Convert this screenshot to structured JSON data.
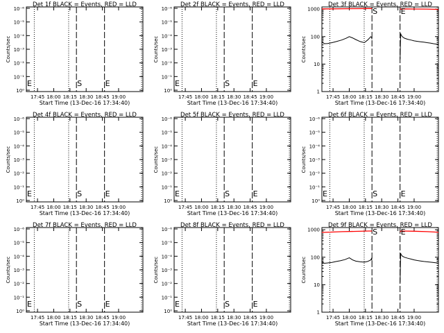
{
  "figure": {
    "panels": [
      {
        "title": "Det 1f BLACK = Events, RED = LLD",
        "variant": "empty",
        "yticks": [
          "10⁻⁶",
          "10⁻⁵",
          "10⁻⁴",
          "10⁻³",
          "10⁻²",
          "10⁻¹",
          "10⁰"
        ],
        "marker_s_show": true,
        "marker_e_show": true,
        "marker_e_left_show": true
      },
      {
        "title": "Det 2f BLACK = Events, RED = LLD",
        "variant": "empty",
        "yticks": [
          "10⁻⁶",
          "10⁻⁵",
          "10⁻⁴",
          "10⁻³",
          "10⁻²",
          "10⁻¹",
          "10⁰"
        ],
        "marker_s_show": true,
        "marker_e_show": true,
        "marker_e_left_show": true
      },
      {
        "title": "Det 3f BLACK = Events, RED = LLD",
        "variant": "data",
        "yticks": [
          "1000",
          "100",
          "10",
          "1"
        ],
        "marker_s_show": true,
        "marker_e_show": true,
        "marker_e_left_show": false
      },
      {
        "title": "Det 4f BLACK = Events, RED = LLD",
        "variant": "empty",
        "yticks": [
          "10⁻⁶",
          "10⁻⁵",
          "10⁻⁴",
          "10⁻³",
          "10⁻²",
          "10⁻¹",
          "10⁰"
        ],
        "marker_s_show": true,
        "marker_e_show": true,
        "marker_e_left_show": true
      },
      {
        "title": "Det 5f BLACK = Events, RED = LLD",
        "variant": "empty",
        "yticks": [
          "10⁻⁶",
          "10⁻⁵",
          "10⁻⁴",
          "10⁻³",
          "10⁻²",
          "10⁻¹",
          "10⁰"
        ],
        "marker_s_show": true,
        "marker_e_show": true,
        "marker_e_left_show": true
      },
      {
        "title": "Det 6f BLACK = Events, RED = LLD",
        "variant": "empty",
        "yticks": [
          "10⁻⁶",
          "10⁻⁵",
          "10⁻⁴",
          "10⁻³",
          "10⁻²",
          "10⁻¹",
          "10⁰"
        ],
        "marker_s_show": true,
        "marker_e_show": true,
        "marker_e_left_show": true
      },
      {
        "title": "Det 7f BLACK = Events, RED = LLD",
        "variant": "empty",
        "yticks": [
          "10⁻⁶",
          "10⁻⁵",
          "10⁻⁴",
          "10⁻³",
          "10⁻²",
          "10⁻¹",
          "10⁰"
        ],
        "marker_s_show": true,
        "marker_e_show": true,
        "marker_e_left_show": true
      },
      {
        "title": "Det 8f BLACK = Events, RED = LLD",
        "variant": "empty",
        "yticks": [
          "10⁻⁶",
          "10⁻⁵",
          "10⁻⁴",
          "10⁻³",
          "10⁻²",
          "10⁻¹",
          "10⁰"
        ],
        "marker_s_show": true,
        "marker_e_show": true,
        "marker_e_left_show": true
      },
      {
        "title": "Det 9f BLACK = Events, RED = LLD",
        "variant": "data",
        "yticks": [
          "1000",
          "100",
          "10",
          "1"
        ],
        "marker_s_show": true,
        "marker_e_show": true,
        "marker_e_left_show": false
      }
    ],
    "xticks": [
      "17:45",
      "18:00",
      "18:15",
      "18:30",
      "18:45",
      "19:00"
    ],
    "xlabel": "Start Time (13-Dec-16 17:34:40)",
    "ylabel": "Counts/sec",
    "marker_s": "S",
    "marker_e": "E",
    "colors": {
      "events": "#000000",
      "lld": "#ff0000"
    }
  },
  "chart_data": [
    {
      "type": "line",
      "title": "Det 1f BLACK = Events, RED = LLD",
      "xlabel": "Start Time (13-Dec-16 17:34:40)",
      "ylabel": "Counts/sec",
      "y_scale": "log",
      "ylim": [
        1e-06,
        1
      ],
      "x_tick_labels": [
        "17:45",
        "18:00",
        "18:15",
        "18:30",
        "18:45",
        "19:00"
      ],
      "series": []
    },
    {
      "type": "line",
      "title": "Det 2f BLACK = Events, RED = LLD",
      "xlabel": "Start Time (13-Dec-16 17:34:40)",
      "ylabel": "Counts/sec",
      "y_scale": "log",
      "ylim": [
        1e-06,
        1
      ],
      "x_tick_labels": [
        "17:45",
        "18:00",
        "18:15",
        "18:30",
        "18:45",
        "19:00"
      ],
      "series": []
    },
    {
      "type": "line",
      "title": "Det 3f BLACK = Events, RED = LLD",
      "xlabel": "Start Time (13-Dec-16 17:34:40)",
      "ylabel": "Counts/sec",
      "y_scale": "log",
      "ylim": [
        1,
        1000
      ],
      "x_tick_labels": [
        "17:45",
        "18:00",
        "18:15",
        "18:30",
        "18:45",
        "19:00"
      ],
      "series": [
        {
          "name": "Events",
          "color": "#000000",
          "x": [
            17.578,
            17.617,
            17.667,
            17.733,
            17.8,
            17.883,
            17.95,
            18.0,
            18.05,
            18.1,
            18.167,
            18.233,
            18.283,
            18.333,
            18.343,
            18.35,
            18.783,
            18.792,
            18.8,
            18.817,
            18.85,
            18.9,
            18.95,
            19.0,
            19.05,
            19.1,
            19.15,
            19.2,
            19.25,
            19.3,
            19.35,
            19.375
          ],
          "y": [
            65,
            55,
            56,
            60,
            66,
            75,
            87,
            100,
            90,
            78,
            66,
            60,
            75,
            100,
            95,
            80,
            15,
            130,
            115,
            100,
            88,
            80,
            75,
            70,
            67,
            65,
            63,
            60,
            58,
            55,
            53,
            52
          ]
        },
        {
          "name": "LLD",
          "color": "#ff0000",
          "x": [
            17.578,
            17.7,
            17.9,
            18.1,
            18.3,
            18.35,
            18.783,
            18.8,
            19.0,
            19.2,
            19.35,
            19.375
          ],
          "y": [
            1020,
            1020,
            1030,
            1040,
            1050,
            1050,
            980,
            1020,
            1010,
            1000,
            980,
            950
          ]
        }
      ]
    },
    {
      "type": "line",
      "title": "Det 4f BLACK = Events, RED = LLD",
      "xlabel": "Start Time (13-Dec-16 17:34:40)",
      "ylabel": "Counts/sec",
      "y_scale": "log",
      "ylim": [
        1e-06,
        1
      ],
      "x_tick_labels": [
        "17:45",
        "18:00",
        "18:15",
        "18:30",
        "18:45",
        "19:00"
      ],
      "series": []
    },
    {
      "type": "line",
      "title": "Det 5f BLACK = Events, RED = LLD",
      "xlabel": "Start Time (13-Dec-16 17:34:40)",
      "ylabel": "Counts/sec",
      "y_scale": "log",
      "ylim": [
        1e-06,
        1
      ],
      "x_tick_labels": [
        "17:45",
        "18:00",
        "18:15",
        "18:30",
        "18:45",
        "19:00"
      ],
      "series": []
    },
    {
      "type": "line",
      "title": "Det 6f BLACK = Events, RED = LLD",
      "xlabel": "Start Time (13-Dec-16 17:34:40)",
      "ylabel": "Counts/sec",
      "y_scale": "log",
      "ylim": [
        1e-06,
        1
      ],
      "x_tick_labels": [
        "17:45",
        "18:00",
        "18:15",
        "18:30",
        "18:45",
        "19:00"
      ],
      "series": []
    },
    {
      "type": "line",
      "title": "Det 7f BLACK = Events, RED = LLD",
      "xlabel": "Start Time (13-Dec-16 17:34:40)",
      "ylabel": "Counts/sec",
      "y_scale": "log",
      "ylim": [
        1e-06,
        1
      ],
      "x_tick_labels": [
        "17:45",
        "18:00",
        "18:15",
        "18:30",
        "18:45",
        "19:00"
      ],
      "series": []
    },
    {
      "type": "line",
      "title": "Det 8f BLACK = Events, RED = LLD",
      "xlabel": "Start Time (13-Dec-16 17:34:40)",
      "ylabel": "Counts/sec",
      "y_scale": "log",
      "ylim": [
        1e-06,
        1
      ],
      "x_tick_labels": [
        "17:45",
        "18:00",
        "18:15",
        "18:30",
        "18:45",
        "19:00"
      ],
      "series": []
    },
    {
      "type": "line",
      "title": "Det 9f BLACK = Events, RED = LLD",
      "xlabel": "Start Time (13-Dec-16 17:34:40)",
      "ylabel": "Counts/sec",
      "y_scale": "log",
      "ylim": [
        1,
        1000
      ],
      "x_tick_labels": [
        "17:45",
        "18:00",
        "18:15",
        "18:30",
        "18:45",
        "19:00"
      ],
      "series": [
        {
          "name": "Events",
          "color": "#000000",
          "x": [
            17.578,
            17.617,
            17.667,
            17.733,
            17.8,
            17.867,
            17.933,
            18.0,
            18.05,
            18.1,
            18.167,
            18.233,
            18.283,
            18.333,
            18.343,
            18.35,
            18.783,
            18.792,
            18.8,
            18.817,
            18.85,
            18.9,
            18.95,
            19.0,
            19.05,
            19.1,
            19.15,
            19.2,
            19.25,
            19.3,
            19.35,
            19.375
          ],
          "y": [
            68,
            60,
            62,
            65,
            70,
            75,
            82,
            95,
            80,
            72,
            68,
            66,
            70,
            80,
            90,
            75,
            12,
            140,
            125,
            110,
            100,
            92,
            86,
            80,
            76,
            73,
            70,
            68,
            66,
            64,
            62,
            60
          ]
        },
        {
          "name": "LLD",
          "color": "#ff0000",
          "x": [
            17.578,
            17.7,
            17.9,
            18.1,
            18.3,
            18.35,
            18.783,
            18.8,
            19.0,
            19.2,
            19.35,
            19.375
          ],
          "y": [
            800,
            820,
            850,
            870,
            900,
            900,
            850,
            900,
            880,
            850,
            820,
            800
          ]
        }
      ]
    }
  ]
}
